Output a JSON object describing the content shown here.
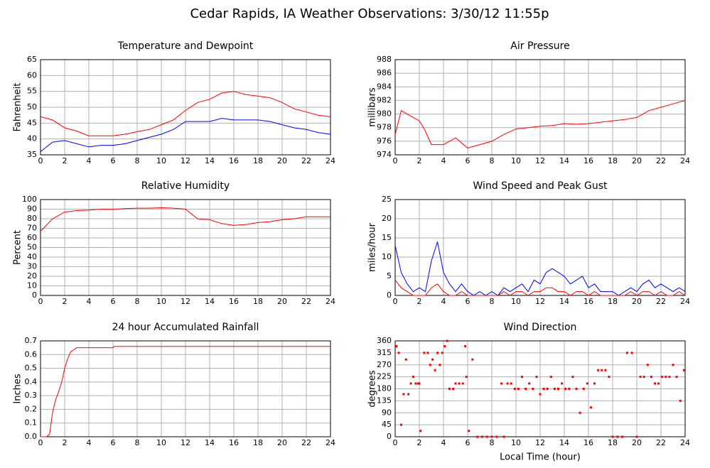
{
  "title": "Cedar Rapids, IA Weather Observations: 3/30/12 11:55p",
  "chart_data": [
    {
      "type": "line",
      "title": "Temperature and Dewpoint",
      "ylabel": "Fahrenheit",
      "x": [
        0,
        1,
        2,
        3,
        4,
        5,
        6,
        7,
        8,
        9,
        10,
        11,
        12,
        13,
        14,
        15,
        16,
        17,
        18,
        19,
        20,
        21,
        22,
        23,
        24
      ],
      "series": [
        {
          "color": "#0000ff",
          "values": [
            36,
            39,
            39.5,
            38.5,
            37.5,
            38,
            38,
            38.5,
            39.5,
            40.5,
            41.5,
            43,
            45.5,
            45.5,
            45.5,
            46.5,
            46,
            46,
            46,
            45.5,
            44.5,
            43.5,
            43,
            42,
            41.5
          ]
        },
        {
          "color": "#ff0000",
          "values": [
            47,
            46,
            43.5,
            42.5,
            41,
            41,
            41,
            41.5,
            42.3,
            43,
            44.5,
            46,
            49,
            51.5,
            52.5,
            54.5,
            55,
            54,
            53.5,
            53,
            51.5,
            49.5,
            48.5,
            47.5,
            47
          ]
        }
      ],
      "xlim": [
        0,
        24
      ],
      "xticks": [
        0,
        2,
        4,
        6,
        8,
        10,
        12,
        14,
        16,
        18,
        20,
        22,
        24
      ],
      "ylim": [
        35,
        65
      ],
      "yticks": [
        35,
        40,
        45,
        50,
        55,
        60,
        65
      ],
      "grid": true
    },
    {
      "type": "line",
      "title": "Air Pressure",
      "ylabel": "millibars",
      "x": [
        0,
        0.5,
        1,
        1.5,
        2,
        2.5,
        3,
        4,
        5,
        6,
        7,
        8,
        9,
        10,
        11,
        12,
        13,
        14,
        15,
        16,
        17,
        18,
        19,
        20,
        21,
        22,
        23,
        24
      ],
      "series": [
        {
          "color": "#ff0000",
          "values": [
            977,
            980.5,
            980,
            979.5,
            979,
            977.5,
            975.5,
            975.5,
            976.5,
            975,
            975.5,
            976,
            977,
            977.8,
            978,
            978.2,
            978.3,
            978.6,
            978.5,
            978.6,
            978.8,
            979,
            979.2,
            979.5,
            980.5,
            981,
            981.5,
            982
          ]
        }
      ],
      "xlim": [
        0,
        24
      ],
      "xticks": [
        0,
        2,
        4,
        6,
        8,
        10,
        12,
        14,
        16,
        18,
        20,
        22,
        24
      ],
      "ylim": [
        974,
        988
      ],
      "yticks": [
        974,
        976,
        978,
        980,
        982,
        984,
        986,
        988
      ],
      "grid": true
    },
    {
      "type": "line",
      "title": "Relative Humidity",
      "ylabel": "Percent",
      "x": [
        0,
        1,
        2,
        3,
        4,
        5,
        6,
        7,
        8,
        9,
        10,
        11,
        12,
        13,
        14,
        15,
        16,
        17,
        18,
        19,
        20,
        21,
        22,
        23,
        24
      ],
      "series": [
        {
          "color": "#ff0000",
          "values": [
            67,
            80,
            87,
            88.5,
            89,
            90,
            90,
            90.5,
            91,
            91,
            91.5,
            91,
            90,
            80,
            79,
            75,
            73,
            74,
            76,
            77,
            79,
            80,
            82,
            82,
            82
          ]
        }
      ],
      "xlim": [
        0,
        24
      ],
      "xticks": [
        0,
        2,
        4,
        6,
        8,
        10,
        12,
        14,
        16,
        18,
        20,
        22,
        24
      ],
      "ylim": [
        0,
        100
      ],
      "yticks": [
        0,
        10,
        20,
        30,
        40,
        50,
        60,
        70,
        80,
        90,
        100
      ],
      "grid": true
    },
    {
      "type": "line",
      "title": "Wind Speed and Peak Gust",
      "ylabel": "miles/hour",
      "x": [
        0,
        0.5,
        1,
        1.5,
        2,
        2.5,
        3,
        3.5,
        4,
        4.5,
        5,
        5.5,
        6,
        6.5,
        7,
        7.5,
        8,
        8.5,
        9,
        9.5,
        10,
        10.5,
        11,
        11.5,
        12,
        12.5,
        13,
        13.5,
        14,
        14.5,
        15,
        15.5,
        16,
        16.5,
        17,
        17.5,
        18,
        18.5,
        19,
        19.5,
        20,
        20.5,
        21,
        21.5,
        22,
        22.5,
        23,
        23.5,
        24
      ],
      "series": [
        {
          "color": "#0000ff",
          "values": [
            13,
            6,
            3,
            1,
            2,
            1,
            9,
            14,
            6,
            3,
            1,
            3,
            1,
            0,
            1,
            0,
            1,
            0,
            2,
            1,
            2,
            3,
            1,
            4,
            3,
            6,
            7,
            6,
            5,
            3,
            4,
            5,
            2,
            3,
            1,
            1,
            1,
            0,
            1,
            2,
            1,
            3,
            4,
            2,
            3,
            2,
            1,
            2,
            1
          ]
        },
        {
          "color": "#ff0000",
          "values": [
            4,
            2,
            1,
            0,
            0,
            0,
            2,
            3,
            1,
            0,
            0,
            1,
            0,
            0,
            0,
            0,
            0,
            0,
            1,
            0,
            1,
            1,
            0,
            1,
            1,
            2,
            2,
            1,
            1,
            0,
            1,
            1,
            0,
            1,
            0,
            0,
            0,
            0,
            0,
            1,
            0,
            1,
            1,
            0,
            1,
            0,
            0,
            1,
            0
          ]
        }
      ],
      "xlim": [
        0,
        24
      ],
      "xticks": [
        0,
        2,
        4,
        6,
        8,
        10,
        12,
        14,
        16,
        18,
        20,
        22,
        24
      ],
      "ylim": [
        0,
        25
      ],
      "yticks": [
        0,
        5,
        10,
        15,
        20,
        25
      ],
      "grid": true
    },
    {
      "type": "line",
      "title": "24 hour Accumulated Rainfall",
      "ylabel": "Inches",
      "x": [
        0,
        0.5,
        0.75,
        1,
        1.25,
        1.5,
        1.75,
        2,
        2.25,
        2.5,
        3,
        4,
        5,
        6,
        6.1,
        8,
        12,
        16,
        20,
        24
      ],
      "series": [
        {
          "color": "#ff0000",
          "values": [
            0,
            0,
            0.02,
            0.18,
            0.27,
            0.33,
            0.4,
            0.5,
            0.57,
            0.62,
            0.65,
            0.65,
            0.65,
            0.65,
            0.66,
            0.66,
            0.66,
            0.66,
            0.66,
            0.66
          ]
        }
      ],
      "xlim": [
        0,
        24
      ],
      "xticks": [
        0,
        2,
        4,
        6,
        8,
        10,
        12,
        14,
        16,
        18,
        20,
        22,
        24
      ],
      "ylim": [
        0,
        0.7
      ],
      "yticks": [
        {
          "value": 0,
          "label": "0.0"
        },
        0.1,
        0.2,
        0.3,
        0.4,
        0.5,
        0.6,
        0.7
      ],
      "grid": true
    },
    {
      "type": "scatter",
      "title": "Wind Direction",
      "ylabel": "degrees",
      "xlabel": "Local Time (hour)",
      "x": [
        0.1,
        0.3,
        0.5,
        0.7,
        0.9,
        1.1,
        1.3,
        1.5,
        1.7,
        1.9,
        2.0,
        2.1,
        2.4,
        2.7,
        2.9,
        3.1,
        3.3,
        3.5,
        3.7,
        3.9,
        4.1,
        4.3,
        4.5,
        4.8,
        5.0,
        5.3,
        5.6,
        5.8,
        5.9,
        6.1,
        6.4,
        6.8,
        7.2,
        7.6,
        8.0,
        8.4,
        8.8,
        9.0,
        9.3,
        9.6,
        9.9,
        10.2,
        10.5,
        10.8,
        11.1,
        11.4,
        11.7,
        12.0,
        12.3,
        12.6,
        12.9,
        13.2,
        13.5,
        13.8,
        14.1,
        14.4,
        14.7,
        15.0,
        15.3,
        15.6,
        15.9,
        16.2,
        16.5,
        16.8,
        17.1,
        17.4,
        17.7,
        18.0,
        18.4,
        18.8,
        19.2,
        19.6,
        20.0,
        20.3,
        20.6,
        20.9,
        21.2,
        21.5,
        21.8,
        22.1,
        22.4,
        22.7,
        23.0,
        23.3,
        23.6,
        23.9
      ],
      "series": [
        {
          "color": "#ff0000",
          "values": [
            340,
            315,
            45,
            160,
            290,
            160,
            200,
            225,
            200,
            200,
            200,
            22,
            315,
            315,
            270,
            290,
            250,
            315,
            270,
            315,
            340,
            360,
            180,
            180,
            200,
            200,
            200,
            340,
            225,
            22,
            290,
            0,
            0,
            0,
            0,
            0,
            200,
            0,
            200,
            200,
            180,
            180,
            225,
            180,
            200,
            180,
            225,
            160,
            180,
            180,
            225,
            180,
            180,
            200,
            180,
            180,
            225,
            180,
            90,
            180,
            200,
            110,
            200,
            250,
            250,
            250,
            225,
            0,
            0,
            0,
            315,
            315,
            0,
            225,
            225,
            270,
            225,
            200,
            200,
            225,
            225,
            225,
            270,
            225,
            135,
            250
          ]
        }
      ],
      "xlim": [
        0,
        24
      ],
      "xticks": [
        0,
        2,
        4,
        6,
        8,
        10,
        12,
        14,
        16,
        18,
        20,
        22,
        24
      ],
      "ylim": [
        0,
        360
      ],
      "yticks": [
        0,
        45,
        90,
        135,
        180,
        225,
        270,
        315,
        360
      ],
      "grid": true
    }
  ]
}
